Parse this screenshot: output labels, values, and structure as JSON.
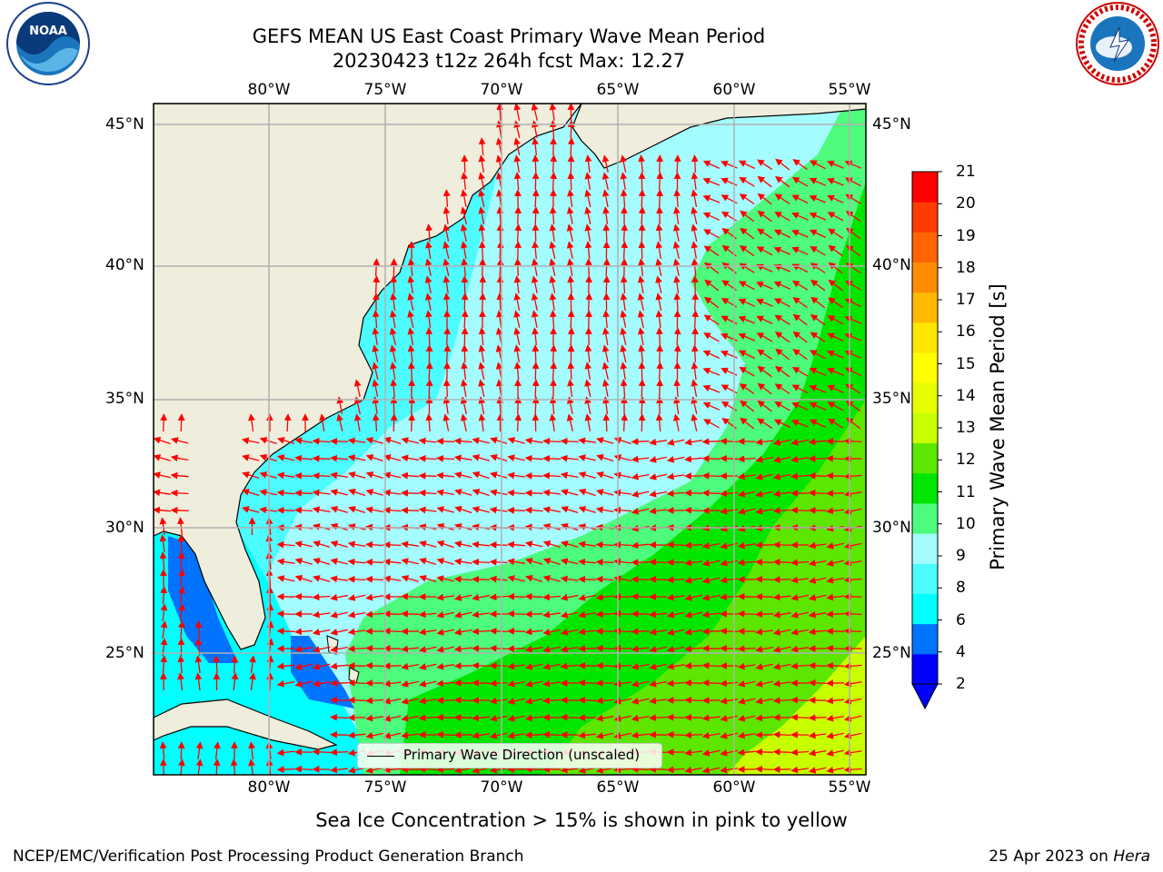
{
  "title": {
    "line1": "GEFS MEAN US East Coast Primary Wave Mean Period",
    "line2": "20230423 t12z 264h fcst   Max: 12.27"
  },
  "map": {
    "lon_labels": [
      "80°W",
      "75°W",
      "70°W",
      "65°W",
      "60°W",
      "55°W"
    ],
    "lat_labels": [
      "45°N",
      "40°N",
      "35°N",
      "30°N",
      "25°N"
    ],
    "legend_label": "Primary Wave Direction (unscaled)",
    "land_color": "#efeddb",
    "arrow_color": "#ff0000"
  },
  "colorbar": {
    "title": "Primary Wave Mean Period [s]",
    "ticks": [
      "21",
      "20",
      "19",
      "18",
      "17",
      "16",
      "15",
      "14",
      "13",
      "12",
      "11",
      "10",
      "9",
      "8",
      "6",
      "4",
      "2"
    ],
    "colors": [
      "#0000ff",
      "#0073ff",
      "#00ffff",
      "#4dfcff",
      "#a4fcff",
      "#4dfc7c",
      "#00e600",
      "#5ce600",
      "#c8ff00",
      "#e6ff00",
      "#ffff00",
      "#ffe600",
      "#ffb900",
      "#ff8c00",
      "#ff6400",
      "#ff3c00",
      "#ff0000"
    ]
  },
  "logos": {
    "left_text": "NOAA",
    "right_text": "NATIONAL WEATHER SERVICE"
  },
  "footer": {
    "sea_ice_note": "Sea Ice Concentration > 15% is shown in pink to yellow",
    "left": "NCEP/EMC/Verification Post Processing Product Generation Branch",
    "right_date": "25 Apr 2023 on ",
    "right_host": "Hera"
  }
}
